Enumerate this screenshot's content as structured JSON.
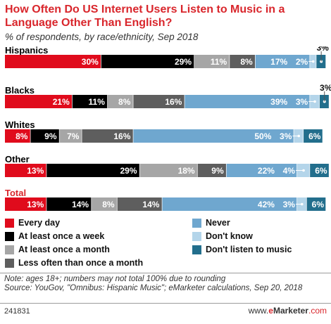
{
  "title": "How Often Do US Internet Users Listen to Music in a Language Other Than English?",
  "subtitle": "% of respondents, by race/ethnicity, Sep 2018",
  "colors": {
    "Every day": "#e00b1c",
    "At least once a week": "#000000",
    "At least once a month": "#a6a6a6",
    "Less often than once a month": "#5e5e5e",
    "Never": "#6fa7cf",
    "Don't know": "#b4d5ea",
    "Don't listen to music": "#226e8c",
    "total_label": "#d9262c"
  },
  "chart_data": {
    "type": "bar",
    "orientation": "horizontal",
    "stacked": true,
    "categories": [
      "Hispanics",
      "Blacks",
      "Whites",
      "Other",
      "Total"
    ],
    "series": [
      {
        "name": "Every day",
        "values": [
          30,
          21,
          8,
          13,
          13
        ]
      },
      {
        "name": "At least once a week",
        "values": [
          29,
          11,
          9,
          29,
          14
        ]
      },
      {
        "name": "At least once a month",
        "values": [
          11,
          8,
          7,
          18,
          8
        ]
      },
      {
        "name": "Less often than once a month",
        "values": [
          8,
          16,
          16,
          9,
          14
        ]
      },
      {
        "name": "Never",
        "values": [
          17,
          39,
          50,
          22,
          42
        ]
      },
      {
        "name": "Don't know",
        "values": [
          2,
          3,
          3,
          4,
          3
        ]
      },
      {
        "name": "Don't listen to music",
        "values": [
          3,
          3,
          6,
          6,
          6
        ]
      }
    ],
    "xlim": [
      0,
      100
    ],
    "grid": false,
    "legend_placement": "bottom"
  },
  "legend": {
    "left": [
      "Every day",
      "At least once a week",
      "At least once a month",
      "Less often than once a month"
    ],
    "right": [
      "Never",
      "Don't know",
      "Don't listen to music"
    ]
  },
  "footer": {
    "note": "Note: ages 18+; numbers may not total 100% due to rounding",
    "source": "Source: YouGov, \"Omnibus: Hispanic Music\"; eMarketer calculations, Sep 20, 2018",
    "chart_id": "241831",
    "brand_prefix": "www.",
    "brand_e": "e",
    "brand_name": "Marketer",
    "brand_suffix": ".com"
  }
}
